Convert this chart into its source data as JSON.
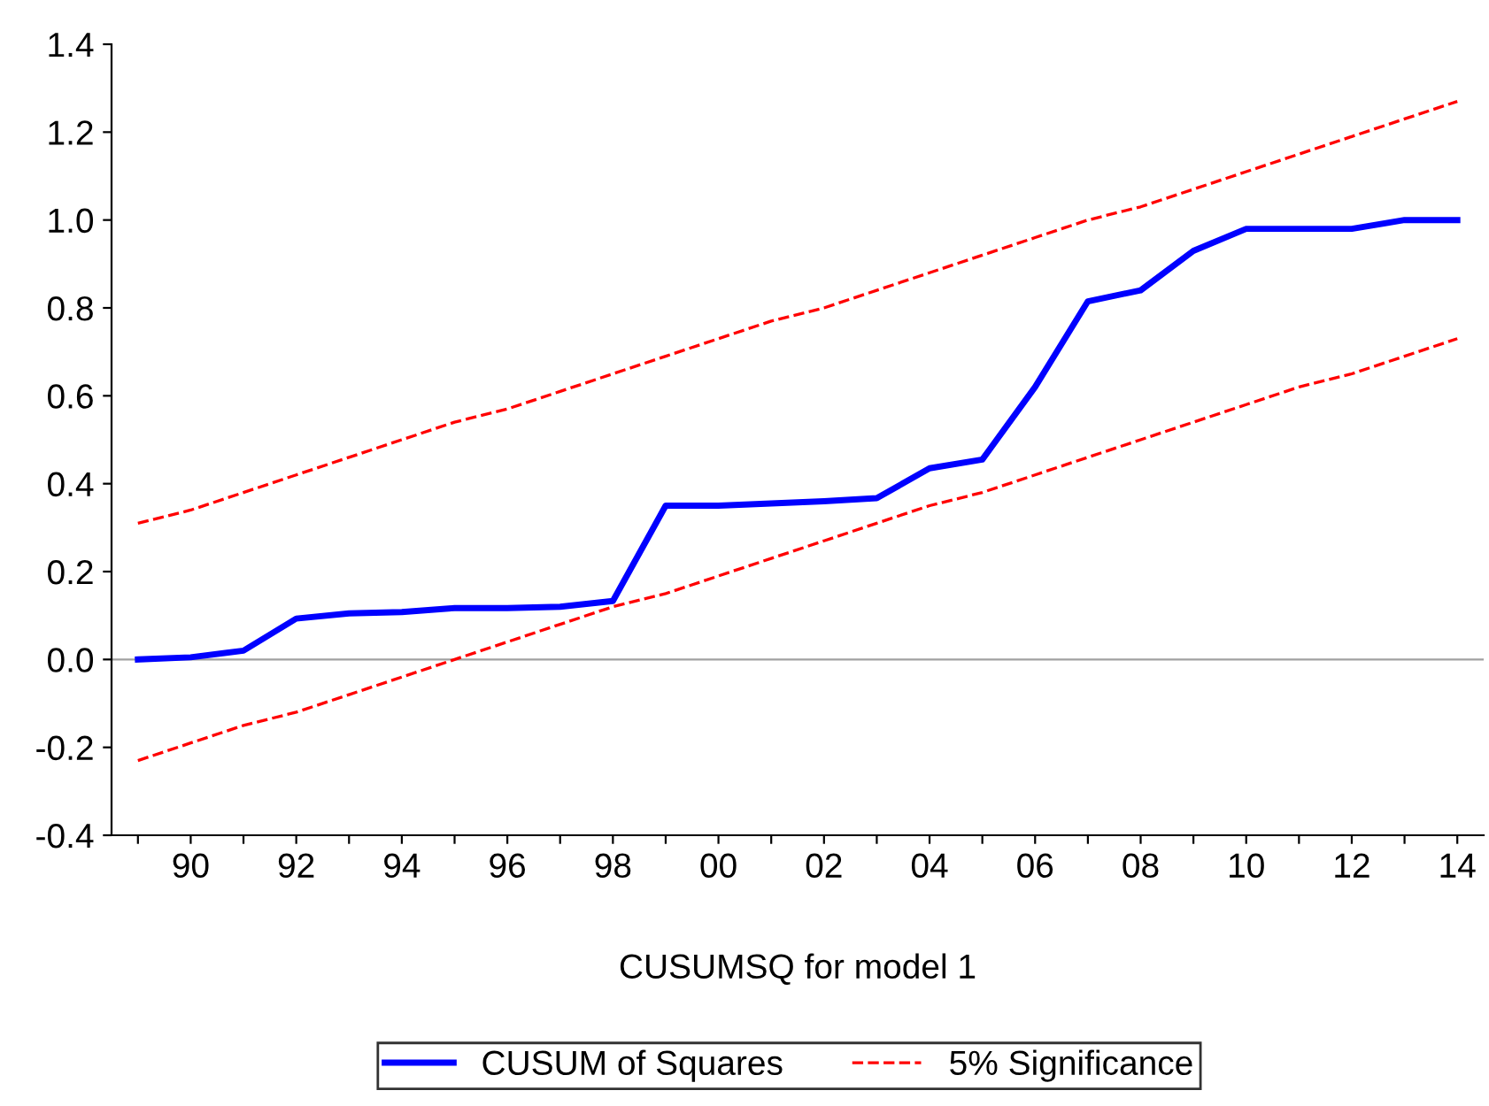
{
  "chart_data": {
    "type": "line",
    "xlabel": "CUSUMSQ for model 1",
    "x": [
      1989,
      1990,
      1991,
      1992,
      1993,
      1994,
      1995,
      1996,
      1997,
      1998,
      1999,
      2000,
      2001,
      2002,
      2003,
      2004,
      2005,
      2006,
      2007,
      2008,
      2009,
      2010,
      2011,
      2012,
      2013,
      2014
    ],
    "series": [
      {
        "name": "CUSUM of Squares",
        "color": "#0000ff",
        "line_style": "solid",
        "values": [
          0.0,
          0.005,
          0.02,
          0.093,
          0.105,
          0.108,
          0.117,
          0.117,
          0.12,
          0.133,
          0.35,
          0.35,
          0.355,
          0.36,
          0.367,
          0.435,
          0.455,
          0.62,
          0.815,
          0.84,
          0.93,
          0.98,
          0.98,
          0.98,
          1.0,
          1.0
        ]
      },
      {
        "name": "5% Significance",
        "color": "#ff0000",
        "line_style": "dashed",
        "values": [
          0.31,
          0.34,
          0.38,
          0.42,
          0.46,
          0.5,
          0.54,
          0.57,
          0.61,
          0.65,
          0.69,
          0.73,
          0.77,
          0.8,
          0.84,
          0.88,
          0.92,
          0.96,
          1.0,
          1.03,
          1.07,
          1.11,
          1.15,
          1.19,
          1.23,
          1.27
        ]
      },
      {
        "color": "#ff0000",
        "line_style": "dashed",
        "values": [
          -0.23,
          -0.19,
          -0.15,
          -0.12,
          -0.08,
          -0.04,
          0.0,
          0.04,
          0.08,
          0.12,
          0.15,
          0.19,
          0.23,
          0.27,
          0.31,
          0.35,
          0.38,
          0.42,
          0.46,
          0.5,
          0.54,
          0.58,
          0.62,
          0.65,
          0.69,
          0.73
        ]
      }
    ],
    "xlim": [
      1988.5,
      2014.5
    ],
    "xticks": [
      {
        "value": 1989,
        "label": null
      },
      {
        "value": 1990,
        "label": "90"
      },
      {
        "value": 1991,
        "label": null
      },
      {
        "value": 1992,
        "label": "92"
      },
      {
        "value": 1993,
        "label": null
      },
      {
        "value": 1994,
        "label": "94"
      },
      {
        "value": 1995,
        "label": null
      },
      {
        "value": 1996,
        "label": "96"
      },
      {
        "value": 1997,
        "label": null
      },
      {
        "value": 1998,
        "label": "98"
      },
      {
        "value": 1999,
        "label": null
      },
      {
        "value": 2000,
        "label": "00"
      },
      {
        "value": 2001,
        "label": null
      },
      {
        "value": 2002,
        "label": "02"
      },
      {
        "value": 2003,
        "label": null
      },
      {
        "value": 2004,
        "label": "04"
      },
      {
        "value": 2005,
        "label": null
      },
      {
        "value": 2006,
        "label": "06"
      },
      {
        "value": 2007,
        "label": null
      },
      {
        "value": 2008,
        "label": "08"
      },
      {
        "value": 2009,
        "label": null
      },
      {
        "value": 2010,
        "label": "10"
      },
      {
        "value": 2011,
        "label": null
      },
      {
        "value": 2012,
        "label": "12"
      },
      {
        "value": 2013,
        "label": null
      },
      {
        "value": 2014,
        "label": "14"
      }
    ],
    "ylim": [
      -0.4,
      1.4
    ],
    "yticks": [
      -0.4,
      -0.2,
      {
        "value": 0,
        "label": "0.0"
      },
      0.2,
      0.4,
      0.6,
      0.8,
      {
        "value": 1,
        "label": "1.0"
      },
      1.2,
      1.4
    ],
    "ref_lines": [
      {
        "axis": "y",
        "value": 0.0,
        "color": "#a0a0a0"
      }
    ],
    "grid": false,
    "legend": "bottom"
  }
}
